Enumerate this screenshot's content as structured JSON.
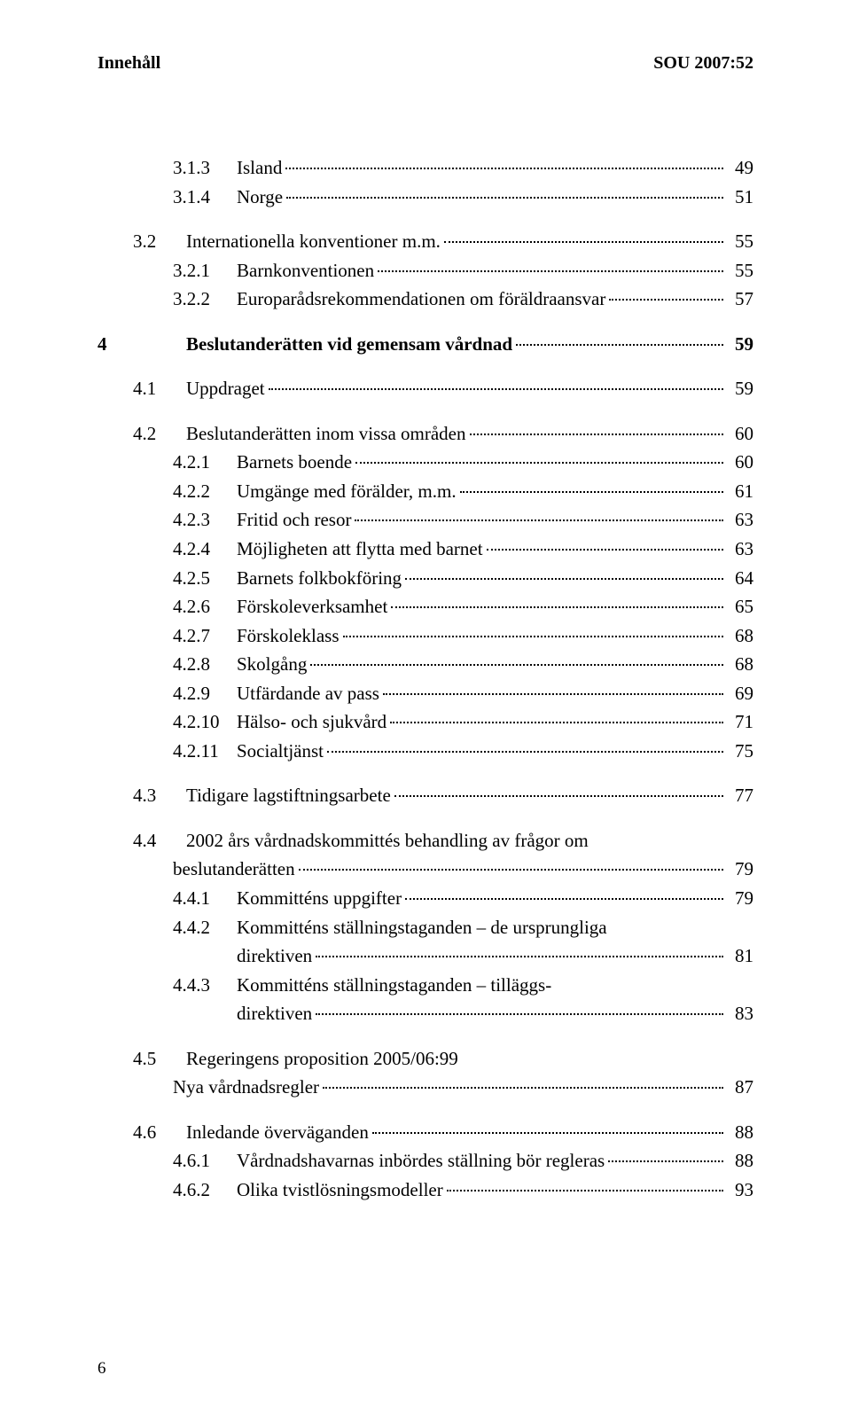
{
  "header": {
    "left": "Innehåll",
    "right": "SOU 2007:52"
  },
  "page_number": "6",
  "toc": {
    "i_313": {
      "num": "3.1.3",
      "label": "Island",
      "page": "49"
    },
    "i_314": {
      "num": "3.1.4",
      "label": "Norge",
      "page": "51"
    },
    "i_32": {
      "num": "3.2",
      "label": "Internationella konventioner m.m.",
      "page": "55"
    },
    "i_321": {
      "num": "3.2.1",
      "label": "Barnkonventionen",
      "page": "55"
    },
    "i_322": {
      "num": "3.2.2",
      "label": "Europarådsrekommendationen om föräldraansvar",
      "page": "57"
    },
    "i_4": {
      "num": "4",
      "label": "Beslutanderätten vid gemensam vårdnad",
      "page": "59"
    },
    "i_41": {
      "num": "4.1",
      "label": "Uppdraget",
      "page": "59"
    },
    "i_42": {
      "num": "4.2",
      "label": "Beslutanderätten inom vissa områden",
      "page": "60"
    },
    "i_421": {
      "num": "4.2.1",
      "label": "Barnets boende",
      "page": "60"
    },
    "i_422": {
      "num": "4.2.2",
      "label": "Umgänge med förälder, m.m.",
      "page": "61"
    },
    "i_423": {
      "num": "4.2.3",
      "label": "Fritid och resor",
      "page": "63"
    },
    "i_424": {
      "num": "4.2.4",
      "label": "Möjligheten att flytta med barnet",
      "page": "63"
    },
    "i_425": {
      "num": "4.2.5",
      "label": "Barnets folkbokföring",
      "page": "64"
    },
    "i_426": {
      "num": "4.2.6",
      "label": "Förskoleverksamhet",
      "page": "65"
    },
    "i_427": {
      "num": "4.2.7",
      "label": "Förskoleklass",
      "page": "68"
    },
    "i_428": {
      "num": "4.2.8",
      "label": "Skolgång",
      "page": "68"
    },
    "i_429": {
      "num": "4.2.9",
      "label": "Utfärdande av pass",
      "page": "69"
    },
    "i_4210": {
      "num": "4.2.10",
      "label": "Hälso- och sjukvård",
      "page": "71"
    },
    "i_4211": {
      "num": "4.2.11",
      "label": "Socialtjänst",
      "page": "75"
    },
    "i_43": {
      "num": "4.3",
      "label": "Tidigare lagstiftningsarbete",
      "page": "77"
    },
    "i_44": {
      "num": "4.4",
      "label_line1": "2002 års vårdnadskommittés behandling av frågor om",
      "label_line2": "beslutanderätten",
      "page": "79"
    },
    "i_441": {
      "num": "4.4.1",
      "label": "Kommitténs uppgifter",
      "page": "79"
    },
    "i_442": {
      "num": "4.4.2",
      "label_line1": "Kommitténs ställningstaganden – de ursprungliga",
      "label_line2": "direktiven",
      "page": "81"
    },
    "i_443": {
      "num": "4.4.3",
      "label_line1": "Kommitténs ställningstaganden – tilläggs-",
      "label_line2": "direktiven",
      "page": "83"
    },
    "i_45": {
      "num": "4.5",
      "label_line1": "Regeringens proposition 2005/06:99",
      "label_line2": "Nya vårdnadsregler",
      "page": "87"
    },
    "i_46": {
      "num": "4.6",
      "label": "Inledande överväganden",
      "page": "88"
    },
    "i_461": {
      "num": "4.6.1",
      "label": "Vårdnadshavarnas inbördes ställning bör regleras",
      "page": "88"
    },
    "i_462": {
      "num": "4.6.2",
      "label": "Olika tvistlösningsmodeller",
      "page": "93"
    }
  }
}
